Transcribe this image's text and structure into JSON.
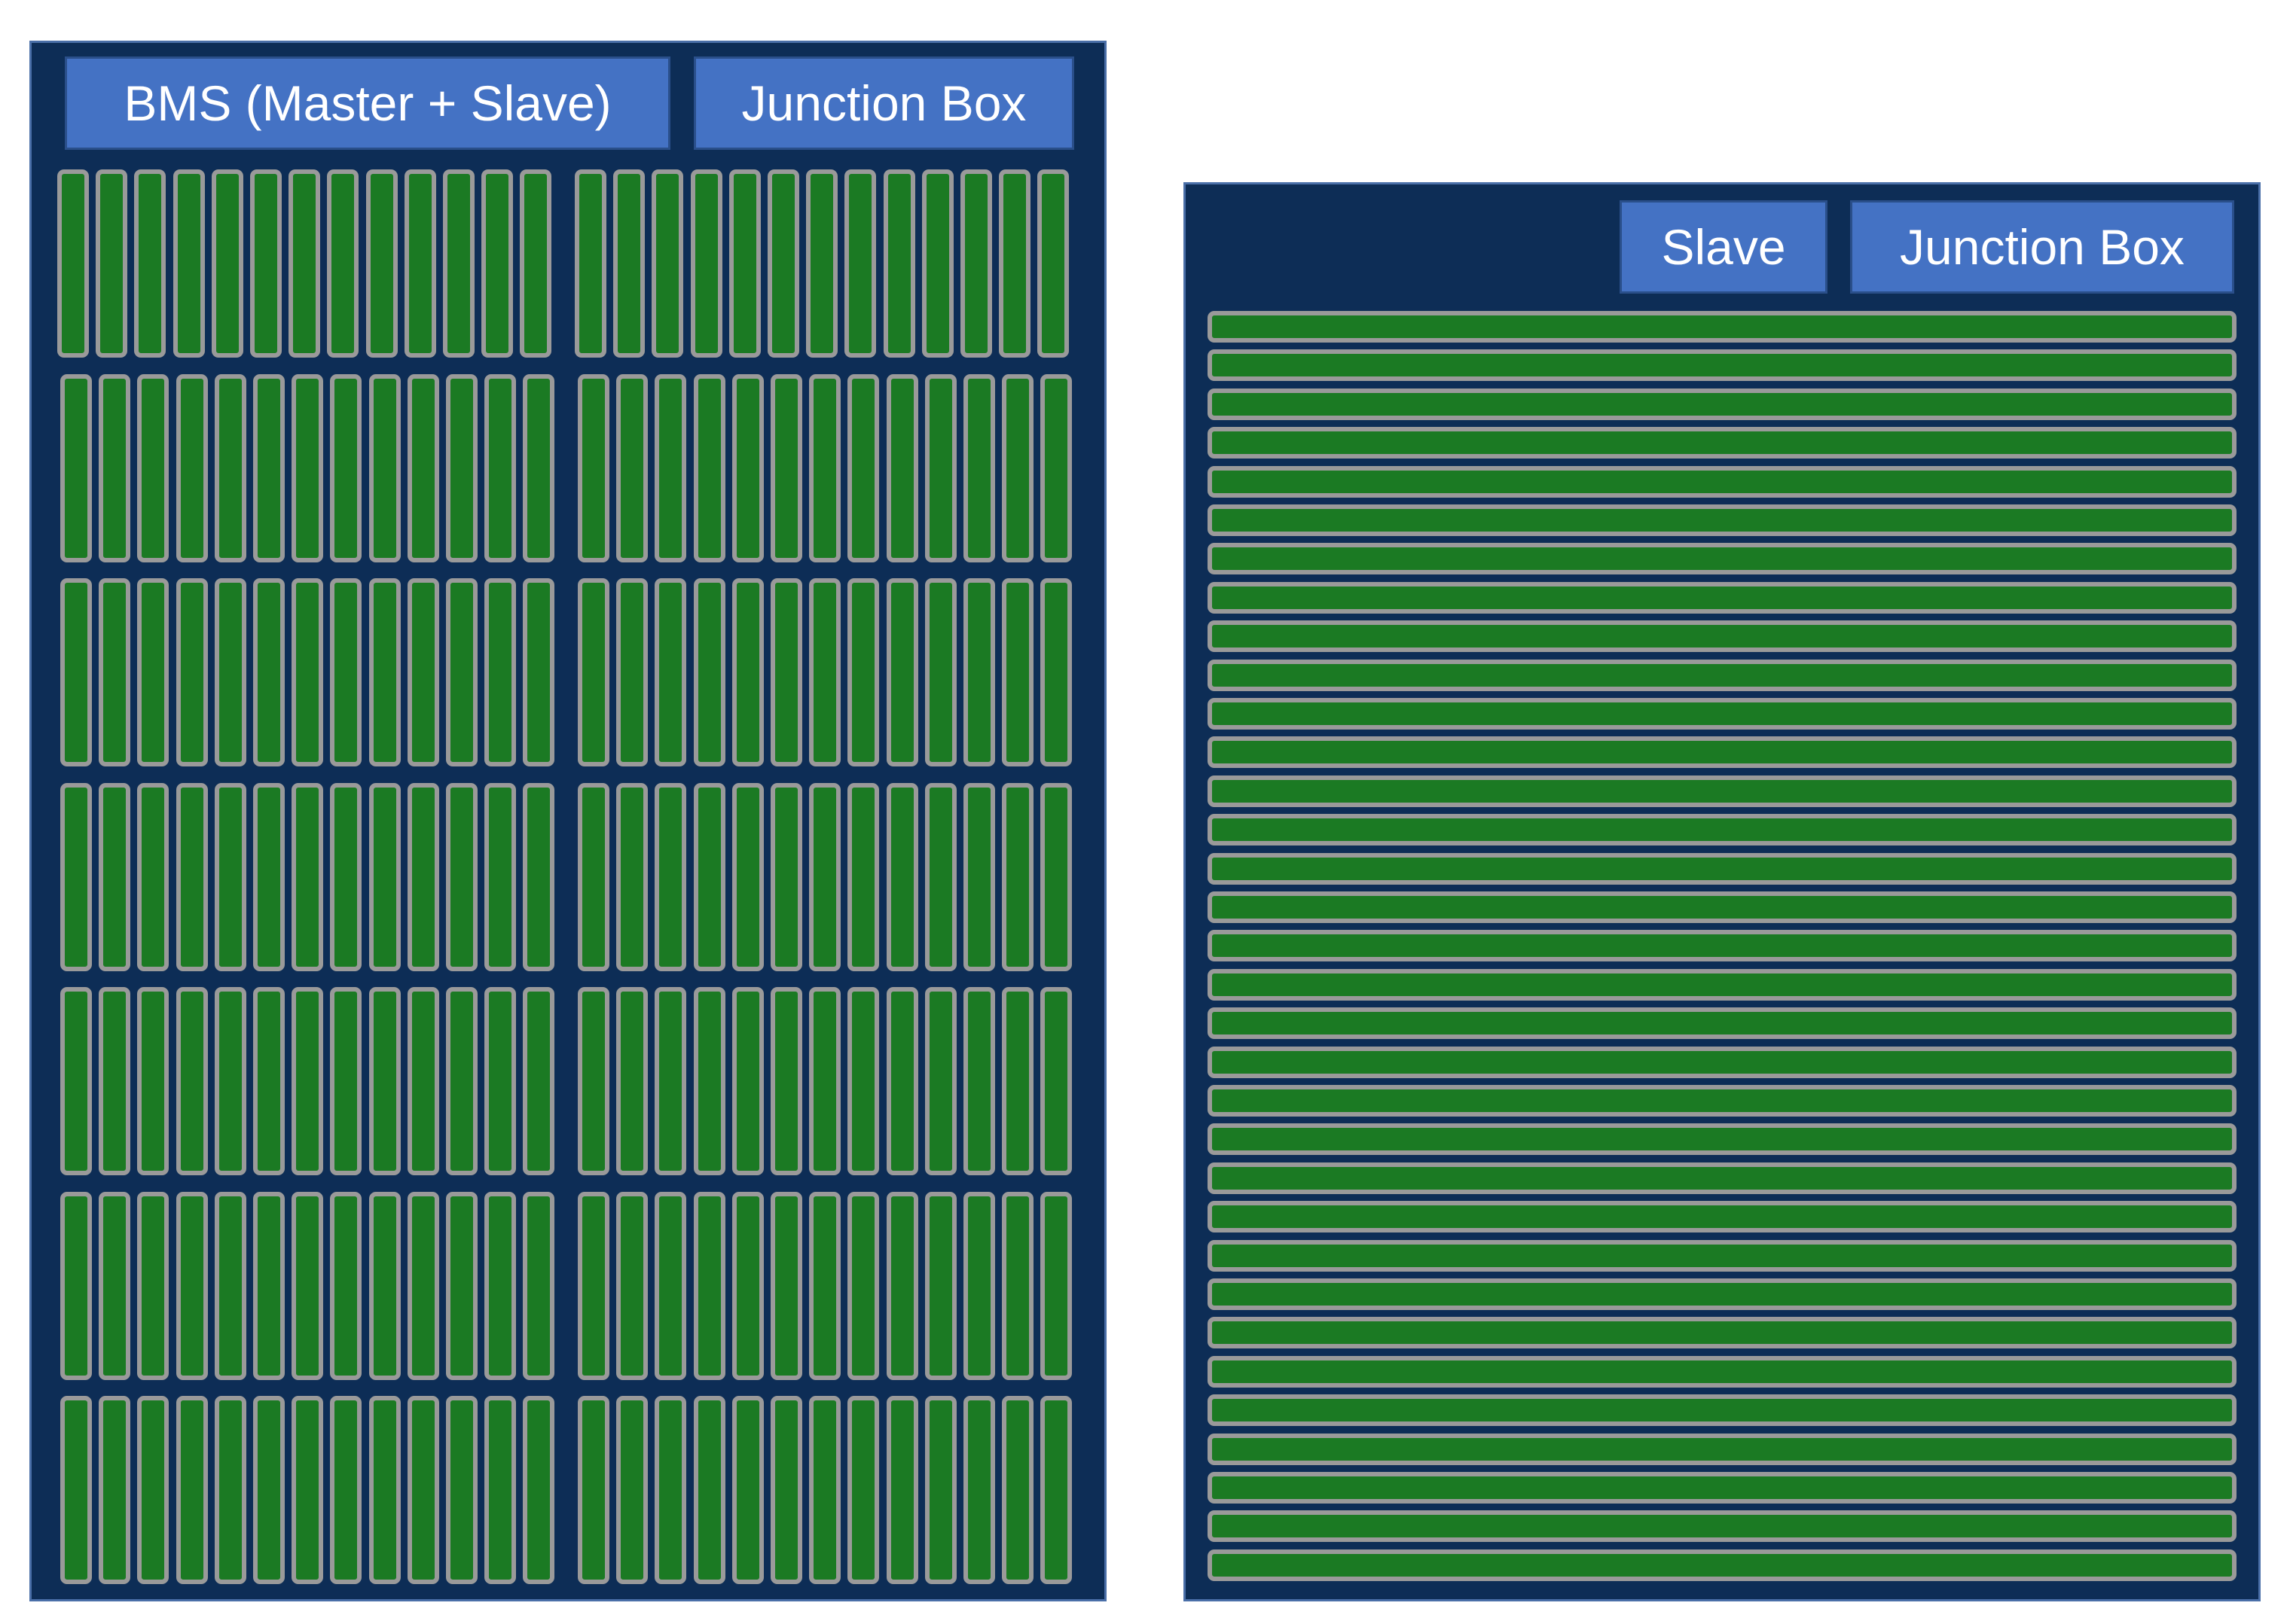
{
  "colors": {
    "pack_background": "#0d2d56",
    "label_background": "#4472c4",
    "cell_fill": "#1b7a23",
    "cell_border": "#9a9a9a"
  },
  "left_pack": {
    "labels": {
      "bms": "BMS (Master + Slave)",
      "junction_box": "Junction Box"
    },
    "modules": {
      "rows": 7,
      "groups_per_row": 2,
      "cells_per_group": 13
    }
  },
  "right_pack": {
    "labels": {
      "slave": "Slave",
      "junction_box": "Junction Box"
    },
    "cell_rows": 33
  }
}
